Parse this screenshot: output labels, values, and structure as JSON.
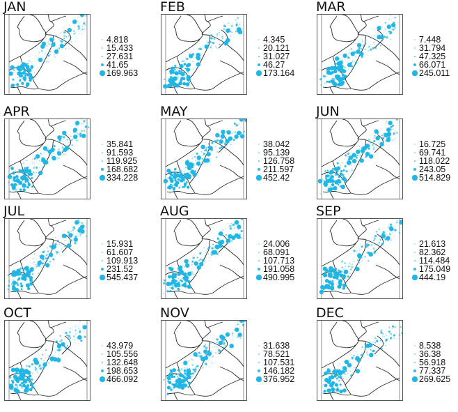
{
  "figure": {
    "type": "small-multiples proportional symbol map",
    "point_color": "#1fb6e6",
    "border_color": "#333333"
  },
  "chart_data": {
    "type": "map-small-multiples",
    "panels_layout": {
      "rows": 4,
      "cols": 3
    },
    "legend_position": "right of each map",
    "symbol": "proportional circles (5 classes)",
    "panels": [
      {
        "title": "JAN",
        "legend": [
          "4.818",
          "15.433",
          "27.631",
          "41.65",
          "169.963"
        ]
      },
      {
        "title": "FEB",
        "legend": [
          "4.345",
          "20.121",
          "31.027",
          "46.27",
          "173.164"
        ]
      },
      {
        "title": "MAR",
        "legend": [
          "7.448",
          "31.794",
          "47.325",
          "66.071",
          "245.011"
        ]
      },
      {
        "title": "APR",
        "legend": [
          "35.841",
          "91.593",
          "119.925",
          "168.682",
          "334.228"
        ]
      },
      {
        "title": "MAY",
        "legend": [
          "38.042",
          "95.139",
          "126.758",
          "211.597",
          "452.42"
        ]
      },
      {
        "title": "JUN",
        "legend": [
          "16.725",
          "69.741",
          "118.022",
          "243.05",
          "514.829"
        ]
      },
      {
        "title": "JUL",
        "legend": [
          "15.931",
          "61.607",
          "109.913",
          "231.52",
          "545.437"
        ]
      },
      {
        "title": "AUG",
        "legend": [
          "24.006",
          "68.091",
          "107.713",
          "191.058",
          "490.995"
        ]
      },
      {
        "title": "SEP",
        "legend": [
          "21.613",
          "82.362",
          "114.484",
          "175.049",
          "444.19"
        ]
      },
      {
        "title": "OCT",
        "legend": [
          "43.979",
          "105.556",
          "132.648",
          "198.653",
          "466.092"
        ]
      },
      {
        "title": "NOV",
        "legend": [
          "31.638",
          "78.521",
          "107.531",
          "146.182",
          "376.952"
        ]
      },
      {
        "title": "DEC",
        "legend": [
          "8.538",
          "36.38",
          "56.918",
          "77.337",
          "269.625"
        ]
      }
    ]
  },
  "panels": [
    {
      "title": "JAN",
      "legend": [
        "4.818",
        "15.433",
        "27.631",
        "41.65",
        "169.963"
      ]
    },
    {
      "title": "FEB",
      "legend": [
        "4.345",
        "20.121",
        "31.027",
        "46.27",
        "173.164"
      ]
    },
    {
      "title": "MAR",
      "legend": [
        "7.448",
        "31.794",
        "47.325",
        "66.071",
        "245.011"
      ]
    },
    {
      "title": "APR",
      "legend": [
        "35.841",
        "91.593",
        "119.925",
        "168.682",
        "334.228"
      ]
    },
    {
      "title": "MAY",
      "legend": [
        "38.042",
        "95.139",
        "126.758",
        "211.597",
        "452.42"
      ]
    },
    {
      "title": "JUN",
      "legend": [
        "16.725",
        "69.741",
        "118.022",
        "243.05",
        "514.829"
      ]
    },
    {
      "title": "JUL",
      "legend": [
        "15.931",
        "61.607",
        "109.913",
        "231.52",
        "545.437"
      ]
    },
    {
      "title": "AUG",
      "legend": [
        "24.006",
        "68.091",
        "107.713",
        "191.058",
        "490.995"
      ]
    },
    {
      "title": "SEP",
      "legend": [
        "21.613",
        "82.362",
        "114.484",
        "175.049",
        "444.19"
      ]
    },
    {
      "title": "OCT",
      "legend": [
        "43.979",
        "105.556",
        "132.648",
        "198.653",
        "466.092"
      ]
    },
    {
      "title": "NOV",
      "legend": [
        "31.638",
        "78.521",
        "107.531",
        "146.182",
        "376.952"
      ]
    },
    {
      "title": "DEC",
      "legend": [
        "8.538",
        "36.38",
        "56.918",
        "77.337",
        "269.625"
      ]
    }
  ]
}
